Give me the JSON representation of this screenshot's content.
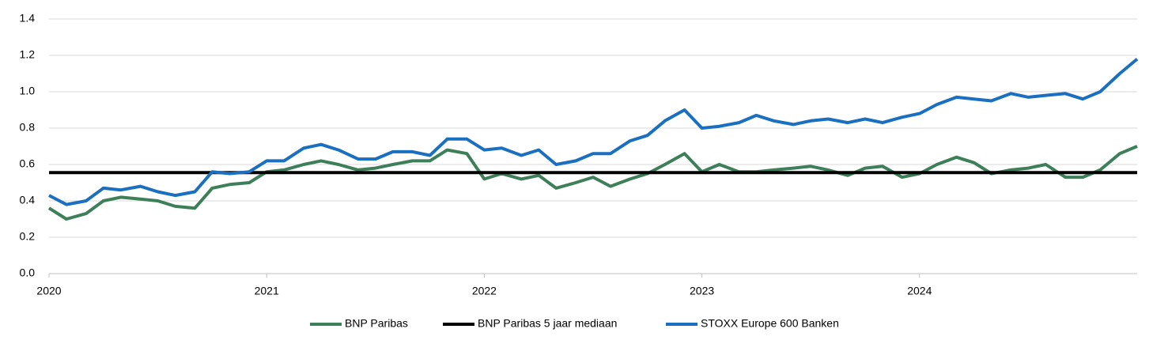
{
  "chart_data": {
    "type": "line",
    "x": [
      2020.0,
      2020.08,
      2020.17,
      2020.25,
      2020.33,
      2020.42,
      2020.5,
      2020.58,
      2020.67,
      2020.75,
      2020.83,
      2020.92,
      2021.0,
      2021.08,
      2021.17,
      2021.25,
      2021.33,
      2021.42,
      2021.5,
      2021.58,
      2021.67,
      2021.75,
      2021.83,
      2021.92,
      2022.0,
      2022.08,
      2022.17,
      2022.25,
      2022.33,
      2022.42,
      2022.5,
      2022.58,
      2022.67,
      2022.75,
      2022.83,
      2022.92,
      2023.0,
      2023.08,
      2023.17,
      2023.25,
      2023.33,
      2023.42,
      2023.5,
      2023.58,
      2023.67,
      2023.75,
      2023.83,
      2023.92,
      2024.0,
      2024.08,
      2024.17,
      2024.25,
      2024.33,
      2024.42,
      2024.5,
      2024.58,
      2024.67,
      2024.75,
      2024.83,
      2024.92,
      2025.0
    ],
    "series": [
      {
        "name": "BNP Paribas",
        "color": "#3d7f59",
        "values": [
          0.36,
          0.3,
          0.33,
          0.4,
          0.42,
          0.41,
          0.4,
          0.37,
          0.36,
          0.47,
          0.49,
          0.5,
          0.56,
          0.57,
          0.6,
          0.62,
          0.6,
          0.57,
          0.58,
          0.6,
          0.62,
          0.62,
          0.68,
          0.66,
          0.52,
          0.55,
          0.52,
          0.54,
          0.47,
          0.5,
          0.53,
          0.48,
          0.52,
          0.55,
          0.6,
          0.66,
          0.56,
          0.6,
          0.56,
          0.56,
          0.57,
          0.58,
          0.59,
          0.57,
          0.54,
          0.58,
          0.59,
          0.53,
          0.55,
          0.6,
          0.64,
          0.61,
          0.55,
          0.57,
          0.58,
          0.6,
          0.53,
          0.53,
          0.57,
          0.66,
          0.7
        ]
      },
      {
        "name": "BNP Paribas 5 jaar mediaan",
        "color": "#000000",
        "x": [
          2020,
          2025
        ],
        "values": [
          0.555,
          0.555
        ]
      },
      {
        "name": "STOXX Europe 600 Banken",
        "color": "#1a6fc0",
        "values": [
          0.43,
          0.38,
          0.4,
          0.47,
          0.46,
          0.48,
          0.45,
          0.43,
          0.45,
          0.56,
          0.55,
          0.56,
          0.62,
          0.62,
          0.69,
          0.71,
          0.68,
          0.63,
          0.63,
          0.67,
          0.67,
          0.65,
          0.74,
          0.74,
          0.68,
          0.69,
          0.65,
          0.68,
          0.6,
          0.62,
          0.66,
          0.66,
          0.73,
          0.76,
          0.84,
          0.9,
          0.8,
          0.81,
          0.83,
          0.87,
          0.84,
          0.82,
          0.84,
          0.85,
          0.83,
          0.85,
          0.83,
          0.86,
          0.88,
          0.93,
          0.97,
          0.96,
          0.95,
          0.99,
          0.97,
          0.98,
          0.99,
          0.96,
          1.0,
          1.1,
          1.18
        ]
      }
    ],
    "xlim": [
      2020,
      2025
    ],
    "xticks": [
      2020,
      2021,
      2022,
      2023,
      2024
    ],
    "ylim": [
      0,
      1.4
    ],
    "yticks": [
      {
        "value": 0,
        "label": "0.0"
      },
      0.2,
      0.4,
      0.6,
      0.8,
      {
        "value": 1,
        "label": "1.0"
      },
      1.2,
      1.4
    ],
    "grid": true,
    "legend": "bottom"
  }
}
